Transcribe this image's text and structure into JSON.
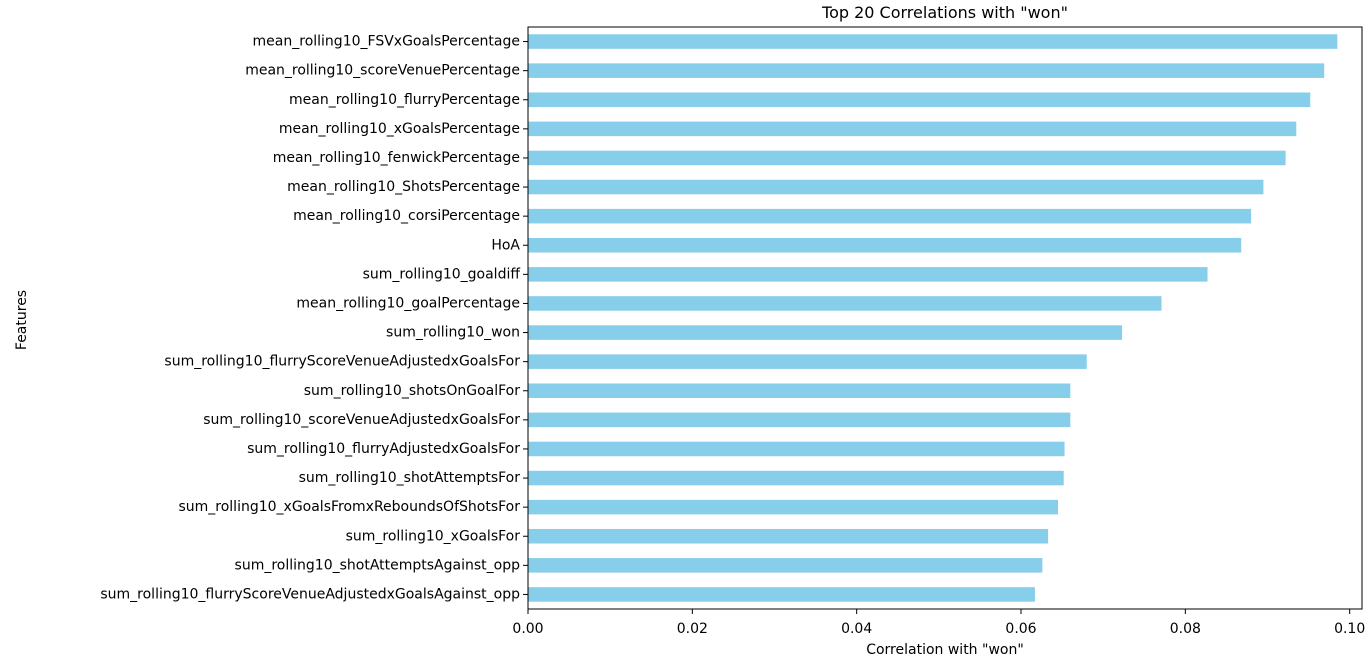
{
  "chart_data": {
    "type": "bar",
    "orientation": "horizontal",
    "title": "Top 20 Correlations with \"won\"",
    "xlabel": "Correlation with \"won\"",
    "ylabel": "Features",
    "xlim": [
      0.0,
      0.1015
    ],
    "xticks": [
      0.0,
      0.02,
      0.04,
      0.06,
      0.08,
      0.1
    ],
    "xtick_labels": [
      "0.00",
      "0.02",
      "0.04",
      "0.06",
      "0.08",
      "0.10"
    ],
    "grid": false,
    "bar_color": "#87ceeb",
    "categories": [
      "mean_rolling10_FSVxGoalsPercentage",
      "mean_rolling10_scoreVenuePercentage",
      "mean_rolling10_flurryPercentage",
      "mean_rolling10_xGoalsPercentage",
      "mean_rolling10_fenwickPercentage",
      "mean_rolling10_ShotsPercentage",
      "mean_rolling10_corsiPercentage",
      "HoA",
      "sum_rolling10_goaldiff",
      "mean_rolling10_goalPercentage",
      "sum_rolling10_won",
      "sum_rolling10_flurryScoreVenueAdjustedxGoalsFor",
      "sum_rolling10_shotsOnGoalFor",
      "sum_rolling10_scoreVenueAdjustedxGoalsFor",
      "sum_rolling10_flurryAdjustedxGoalsFor",
      "sum_rolling10_shotAttemptsFor",
      "sum_rolling10_xGoalsFromxReboundsOfShotsFor",
      "sum_rolling10_xGoalsFor",
      "sum_rolling10_shotAttemptsAgainst_opp",
      "sum_rolling10_flurryScoreVenueAdjustedxGoalsAgainst_opp"
    ],
    "values": [
      0.0985,
      0.0969,
      0.0952,
      0.0935,
      0.0922,
      0.0895,
      0.088,
      0.0868,
      0.0827,
      0.0771,
      0.0723,
      0.068,
      0.066,
      0.066,
      0.0653,
      0.0652,
      0.0645,
      0.0633,
      0.0626,
      0.0617
    ]
  }
}
